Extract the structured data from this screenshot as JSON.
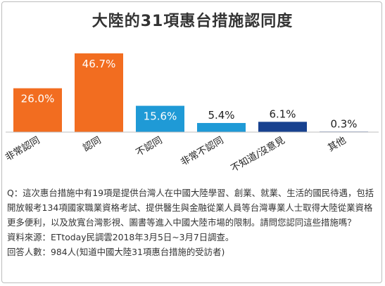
{
  "chart_data": {
    "type": "bar",
    "title": "大陸的31項惠台措施認同度",
    "categories": [
      "非常認同",
      "認同",
      "不認同",
      "非常不認同",
      "不知道/沒意見",
      "其他"
    ],
    "values": [
      26.0,
      46.7,
      15.6,
      5.4,
      6.1,
      0.3
    ],
    "value_labels": [
      "26.0%",
      "46.7%",
      "15.6%",
      "5.4%",
      "6.1%",
      "0.3%"
    ],
    "bar_colors": [
      "#f26d20",
      "#f26d20",
      "#1f9ad6",
      "#1f9ad6",
      "#17418f",
      "#17418f"
    ],
    "label_inside": [
      true,
      true,
      true,
      false,
      false,
      false
    ],
    "ylim": [
      0,
      50
    ],
    "grid": false,
    "legend": "none"
  },
  "description": {
    "question": "Q：這次惠台措施中有19項是提供台灣人在中國大陸學習、創業、就業、生活的國民待遇，包括開放報考134項國家職業資格考試、提供醫生與金融從業人員等台灣專業人士取得大陸從業資格更多便利，以及放寬台灣影視、圖書等進入中國大陸市場的限制。請問您認同這些措施嗎？",
    "source": "資料來源：ETtoday民調雲2018年3月5日~3月7日調查。",
    "respondents": "回答人數：984人(知道中國大陸31項惠台措施的受訪者)"
  }
}
